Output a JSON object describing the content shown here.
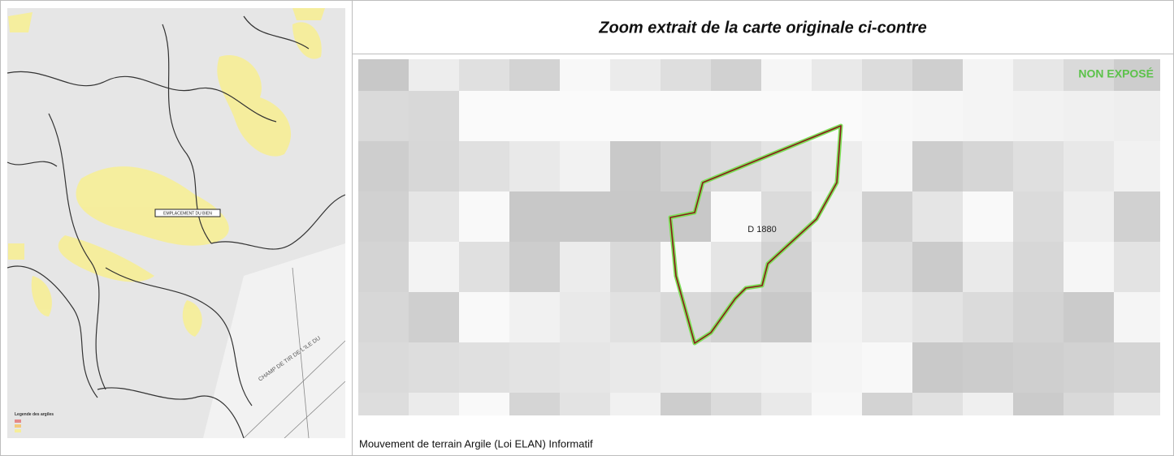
{
  "header": {
    "title": "Zoom extrait de la carte originale ci-contre"
  },
  "zoom_map": {
    "status": "NON EXPOSÉ",
    "parcel_label": "D 1880"
  },
  "overview_map": {
    "location_label": "EMPLACEMENT DU BIEN",
    "legend_title": "Legende des argiles",
    "area_label": "CHAMP DE TIR DE L'ILE DU"
  },
  "caption": "Mouvement de terrain Argile (Loi ELAN) Informatif"
}
